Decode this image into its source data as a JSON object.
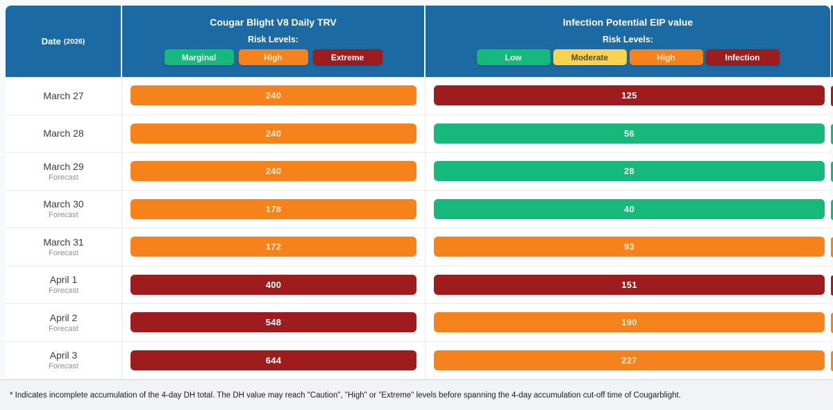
{
  "header": {
    "date_column": {
      "label": "Date",
      "year": "(2026)"
    },
    "trv": {
      "title": "Cougar Blight V8 Daily TRV",
      "risk_levels_label": "Risk Levels:",
      "legend": [
        {
          "label": "Marginal",
          "level": "marginal"
        },
        {
          "label": "High",
          "level": "high"
        },
        {
          "label": "Extreme",
          "level": "extreme"
        }
      ]
    },
    "eip": {
      "title": "Infection Potential EIP value",
      "risk_levels_label": "Risk Levels:",
      "legend": [
        {
          "label": "Low",
          "level": "low"
        },
        {
          "label": "Moderate",
          "level": "moderate"
        },
        {
          "label": "High",
          "level": "high"
        },
        {
          "label": "Infection",
          "level": "infection"
        }
      ]
    }
  },
  "forecast_label": "Forecast",
  "levels": {
    "marginal": {
      "bg": "#17b87b",
      "text": "#e8fbf3"
    },
    "low": {
      "bg": "#17b87b",
      "text": "#e8fbf3"
    },
    "moderate": {
      "bg": "#f8d350",
      "text": "#4f4a38"
    },
    "high": {
      "bg": "#f5821a",
      "text": "#ffe9c8"
    },
    "extreme": {
      "bg": "#9e1c1e",
      "text": "#ffffff"
    },
    "infection": {
      "bg": "#9e1c1e",
      "text": "#ffffff"
    }
  },
  "rows": [
    {
      "date": "March 27",
      "forecast": false,
      "trv": {
        "value": "240",
        "level": "high"
      },
      "eip": {
        "value": "125",
        "level": "infection"
      }
    },
    {
      "date": "March 28",
      "forecast": false,
      "trv": {
        "value": "240",
        "level": "high"
      },
      "eip": {
        "value": "56",
        "level": "low"
      }
    },
    {
      "date": "March 29",
      "forecast": true,
      "trv": {
        "value": "240",
        "level": "high"
      },
      "eip": {
        "value": "28",
        "level": "low"
      }
    },
    {
      "date": "March 30",
      "forecast": true,
      "trv": {
        "value": "178",
        "level": "high"
      },
      "eip": {
        "value": "40",
        "level": "low"
      }
    },
    {
      "date": "March 31",
      "forecast": true,
      "trv": {
        "value": "172",
        "level": "high"
      },
      "eip": {
        "value": "93",
        "level": "high"
      }
    },
    {
      "date": "April 1",
      "forecast": true,
      "trv": {
        "value": "400",
        "level": "extreme"
      },
      "eip": {
        "value": "151",
        "level": "infection"
      }
    },
    {
      "date": "April 2",
      "forecast": true,
      "trv": {
        "value": "548",
        "level": "extreme"
      },
      "eip": {
        "value": "190",
        "level": "high"
      }
    },
    {
      "date": "April 3",
      "forecast": true,
      "trv": {
        "value": "644",
        "level": "extreme"
      },
      "eip": {
        "value": "227",
        "level": "high"
      }
    }
  ],
  "footer": {
    "note": "* Indicates incomplete accumulation of the 4-day DH total. The DH value may reach \"Caution\", \"High\" or \"Extreme\" levels before spanning the 4-day accumulation cut-off time of Cougarblight."
  },
  "colors": {
    "header_bg": "#1c6aa3",
    "page_bg": "#f8f9fb",
    "footer_bg": "#f1f3f6",
    "green": "#17b87b",
    "yellow": "#f8d350",
    "orange": "#f5821a",
    "dark_red": "#9e1c1e"
  },
  "chart_data": {
    "type": "table",
    "title": "Cougar Blight V8 Daily TRV / Infection Potential EIP value",
    "categories": [
      "March 27",
      "March 28",
      "March 29",
      "March 30",
      "March 31",
      "April 1",
      "April 2",
      "April 3"
    ],
    "forecast_flags": [
      false,
      false,
      true,
      true,
      true,
      true,
      true,
      true
    ],
    "series": [
      {
        "name": "Cougar Blight V8 Daily TRV",
        "values": [
          240,
          240,
          240,
          178,
          172,
          400,
          548,
          644
        ],
        "risk_levels": [
          "High",
          "High",
          "High",
          "High",
          "High",
          "Extreme",
          "Extreme",
          "Extreme"
        ]
      },
      {
        "name": "Infection Potential EIP value",
        "values": [
          125,
          56,
          28,
          40,
          93,
          151,
          190,
          227
        ],
        "risk_levels": [
          "Infection",
          "Low",
          "Low",
          "Low",
          "High",
          "Infection",
          "High",
          "High"
        ]
      }
    ],
    "legend_trv": [
      "Marginal",
      "High",
      "Extreme"
    ],
    "legend_eip": [
      "Low",
      "Moderate",
      "High",
      "Infection"
    ],
    "footnote": "* Indicates incomplete accumulation of the 4-day DH total."
  }
}
